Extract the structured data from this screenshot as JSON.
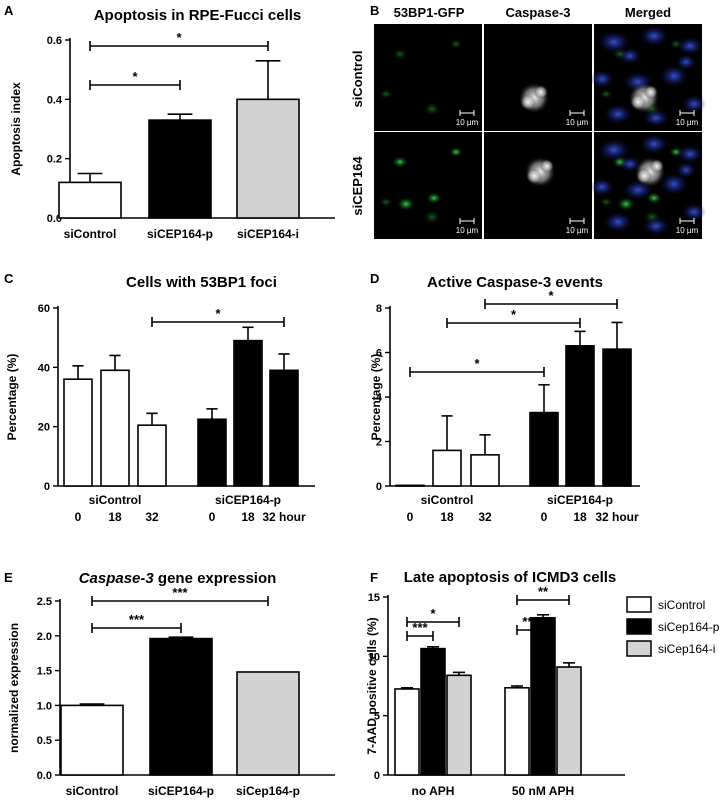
{
  "panel_labels": [
    "A",
    "B",
    "C",
    "D",
    "E",
    "F"
  ],
  "microscopy": {
    "columns": [
      "53BP1-GFP",
      "Caspase-3",
      "Merged"
    ],
    "rows": [
      "siControl",
      "siCEP164"
    ],
    "scale_bar": "10 µm"
  },
  "chart_data": [
    {
      "id": "A",
      "type": "bar",
      "title": "Apoptosis in  RPE-Fucci cells",
      "ylabel": "Apoptosis index",
      "xlabel": "",
      "ylim": [
        0,
        0.6
      ],
      "yticks": [
        "0.0",
        "0.2",
        "0.4",
        "0.6"
      ],
      "categories": [
        "siControl",
        "siCEP164-p",
        "siCEP164-i"
      ],
      "values": [
        0.12,
        0.33,
        0.4
      ],
      "errors": [
        0.03,
        0.02,
        0.13
      ],
      "colors": [
        "#ffffff",
        "#000000",
        "#d3d3d3"
      ],
      "significance": [
        {
          "from": 0,
          "to": 1,
          "label": "*"
        },
        {
          "from": 0,
          "to": 2,
          "label": "*"
        }
      ]
    },
    {
      "id": "C",
      "type": "bar",
      "title": "Cells with 53BP1 foci",
      "ylabel": "Percentage (%)",
      "ylim": [
        0,
        60
      ],
      "yticks": [
        "0",
        "20",
        "40",
        "60"
      ],
      "group_labels": [
        "siControl",
        "siCEP164-p"
      ],
      "categories": [
        "0",
        "18",
        "32",
        "0",
        "18",
        "32 hour"
      ],
      "values": [
        36,
        39,
        20.5,
        22.5,
        49,
        39
      ],
      "errors": [
        4.5,
        5,
        4,
        3.5,
        4.5,
        5.5
      ],
      "colors": [
        "#ffffff",
        "#ffffff",
        "#ffffff",
        "#000000",
        "#000000",
        "#000000"
      ],
      "significance": [
        {
          "from": 2,
          "to": 5,
          "label": "*"
        }
      ]
    },
    {
      "id": "D",
      "type": "bar",
      "title": "Active Caspase-3 events",
      "ylabel": "Percentage (%)",
      "ylim": [
        0,
        8
      ],
      "yticks": [
        "0",
        "2",
        "4",
        "6",
        "8"
      ],
      "group_labels": [
        "siControl",
        "siCEP164-p"
      ],
      "categories": [
        "0",
        "18",
        "32",
        "0",
        "18",
        "32 hour"
      ],
      "values": [
        0.03,
        1.6,
        1.4,
        3.3,
        6.3,
        6.15
      ],
      "errors": [
        0.0,
        1.55,
        0.9,
        1.25,
        0.65,
        1.2
      ],
      "colors": [
        "#ffffff",
        "#ffffff",
        "#ffffff",
        "#000000",
        "#000000",
        "#000000"
      ],
      "significance": [
        {
          "from": 0,
          "to": 3,
          "label": "*"
        },
        {
          "from": 1,
          "to": 4,
          "label": "*"
        },
        {
          "from": 2,
          "to": 5,
          "label": "*"
        }
      ]
    },
    {
      "id": "E",
      "type": "bar",
      "title_italic": "Caspase-3",
      "title_rest": " gene expression",
      "ylabel": "normalized expression",
      "ylim": [
        0,
        2.5
      ],
      "yticks": [
        "0.0",
        "0.5",
        "1.0",
        "1.5",
        "2.0",
        "2.5"
      ],
      "categories": [
        "siControl",
        "siCEP164-p",
        "siCep164-p"
      ],
      "values": [
        1.0,
        1.96,
        1.48
      ],
      "errors": [
        0.02,
        0.02,
        0.0
      ],
      "colors": [
        "#ffffff",
        "#000000",
        "#d3d3d3"
      ],
      "significance": [
        {
          "from": 0,
          "to": 1,
          "label": "***"
        },
        {
          "from": 0,
          "to": 2,
          "label": "***"
        }
      ]
    },
    {
      "id": "F",
      "type": "bar",
      "title": "Late apoptosis of ICMD3 cells",
      "ylabel": "7-AAD positive cells (%)",
      "ylim": [
        0,
        15
      ],
      "yticks": [
        "0",
        "5",
        "10",
        "15"
      ],
      "group_labels": [
        "no APH",
        "50 nM APH"
      ],
      "series": [
        {
          "name": "siControl",
          "values": [
            7.25,
            7.35
          ],
          "errors": [
            0.1,
            0.15
          ],
          "color": "#ffffff"
        },
        {
          "name": "siCep164-p",
          "values": [
            10.65,
            13.25
          ],
          "errors": [
            0.15,
            0.25
          ],
          "color": "#000000"
        },
        {
          "name": "siCep164-i",
          "values": [
            8.4,
            9.1
          ],
          "errors": [
            0.25,
            0.35
          ],
          "color": "#d3d3d3"
        }
      ],
      "legend_position": "right",
      "significance": [
        {
          "group": 0,
          "from": 0,
          "to": 1,
          "label": "***"
        },
        {
          "group": 0,
          "from": 0,
          "to": 2,
          "label": "*"
        },
        {
          "group": 1,
          "from": 0,
          "to": 1,
          "label": "***"
        },
        {
          "group": 1,
          "from": 0,
          "to": 2,
          "label": "**"
        }
      ]
    }
  ]
}
